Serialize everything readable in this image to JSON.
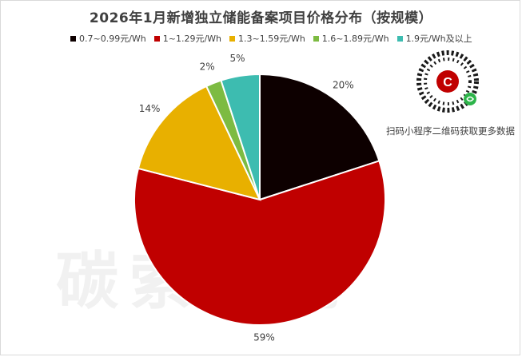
{
  "chart_data": {
    "type": "pie",
    "title": "2026年1月新增独立储能备案项目价格分布（按规模）",
    "categories": [
      "0.7~0.99元/Wh",
      "1~1.29元/Wh",
      "1.3~1.59元/Wh",
      "1.6~1.89元/Wh",
      "1.9元/Wh及以上"
    ],
    "values": [
      20,
      59,
      14,
      2,
      5
    ],
    "data_labels": [
      "20%",
      "59%",
      "14%",
      "2%",
      "5%"
    ],
    "colors": [
      "#0d0000",
      "#c00000",
      "#e8b000",
      "#7dbb42",
      "#3dbcb0"
    ],
    "legend_position": "top"
  },
  "watermark": "碳索储能",
  "qr_caption": "扫码小程序二维码获取更多数据",
  "qr_logo_letter": "C"
}
